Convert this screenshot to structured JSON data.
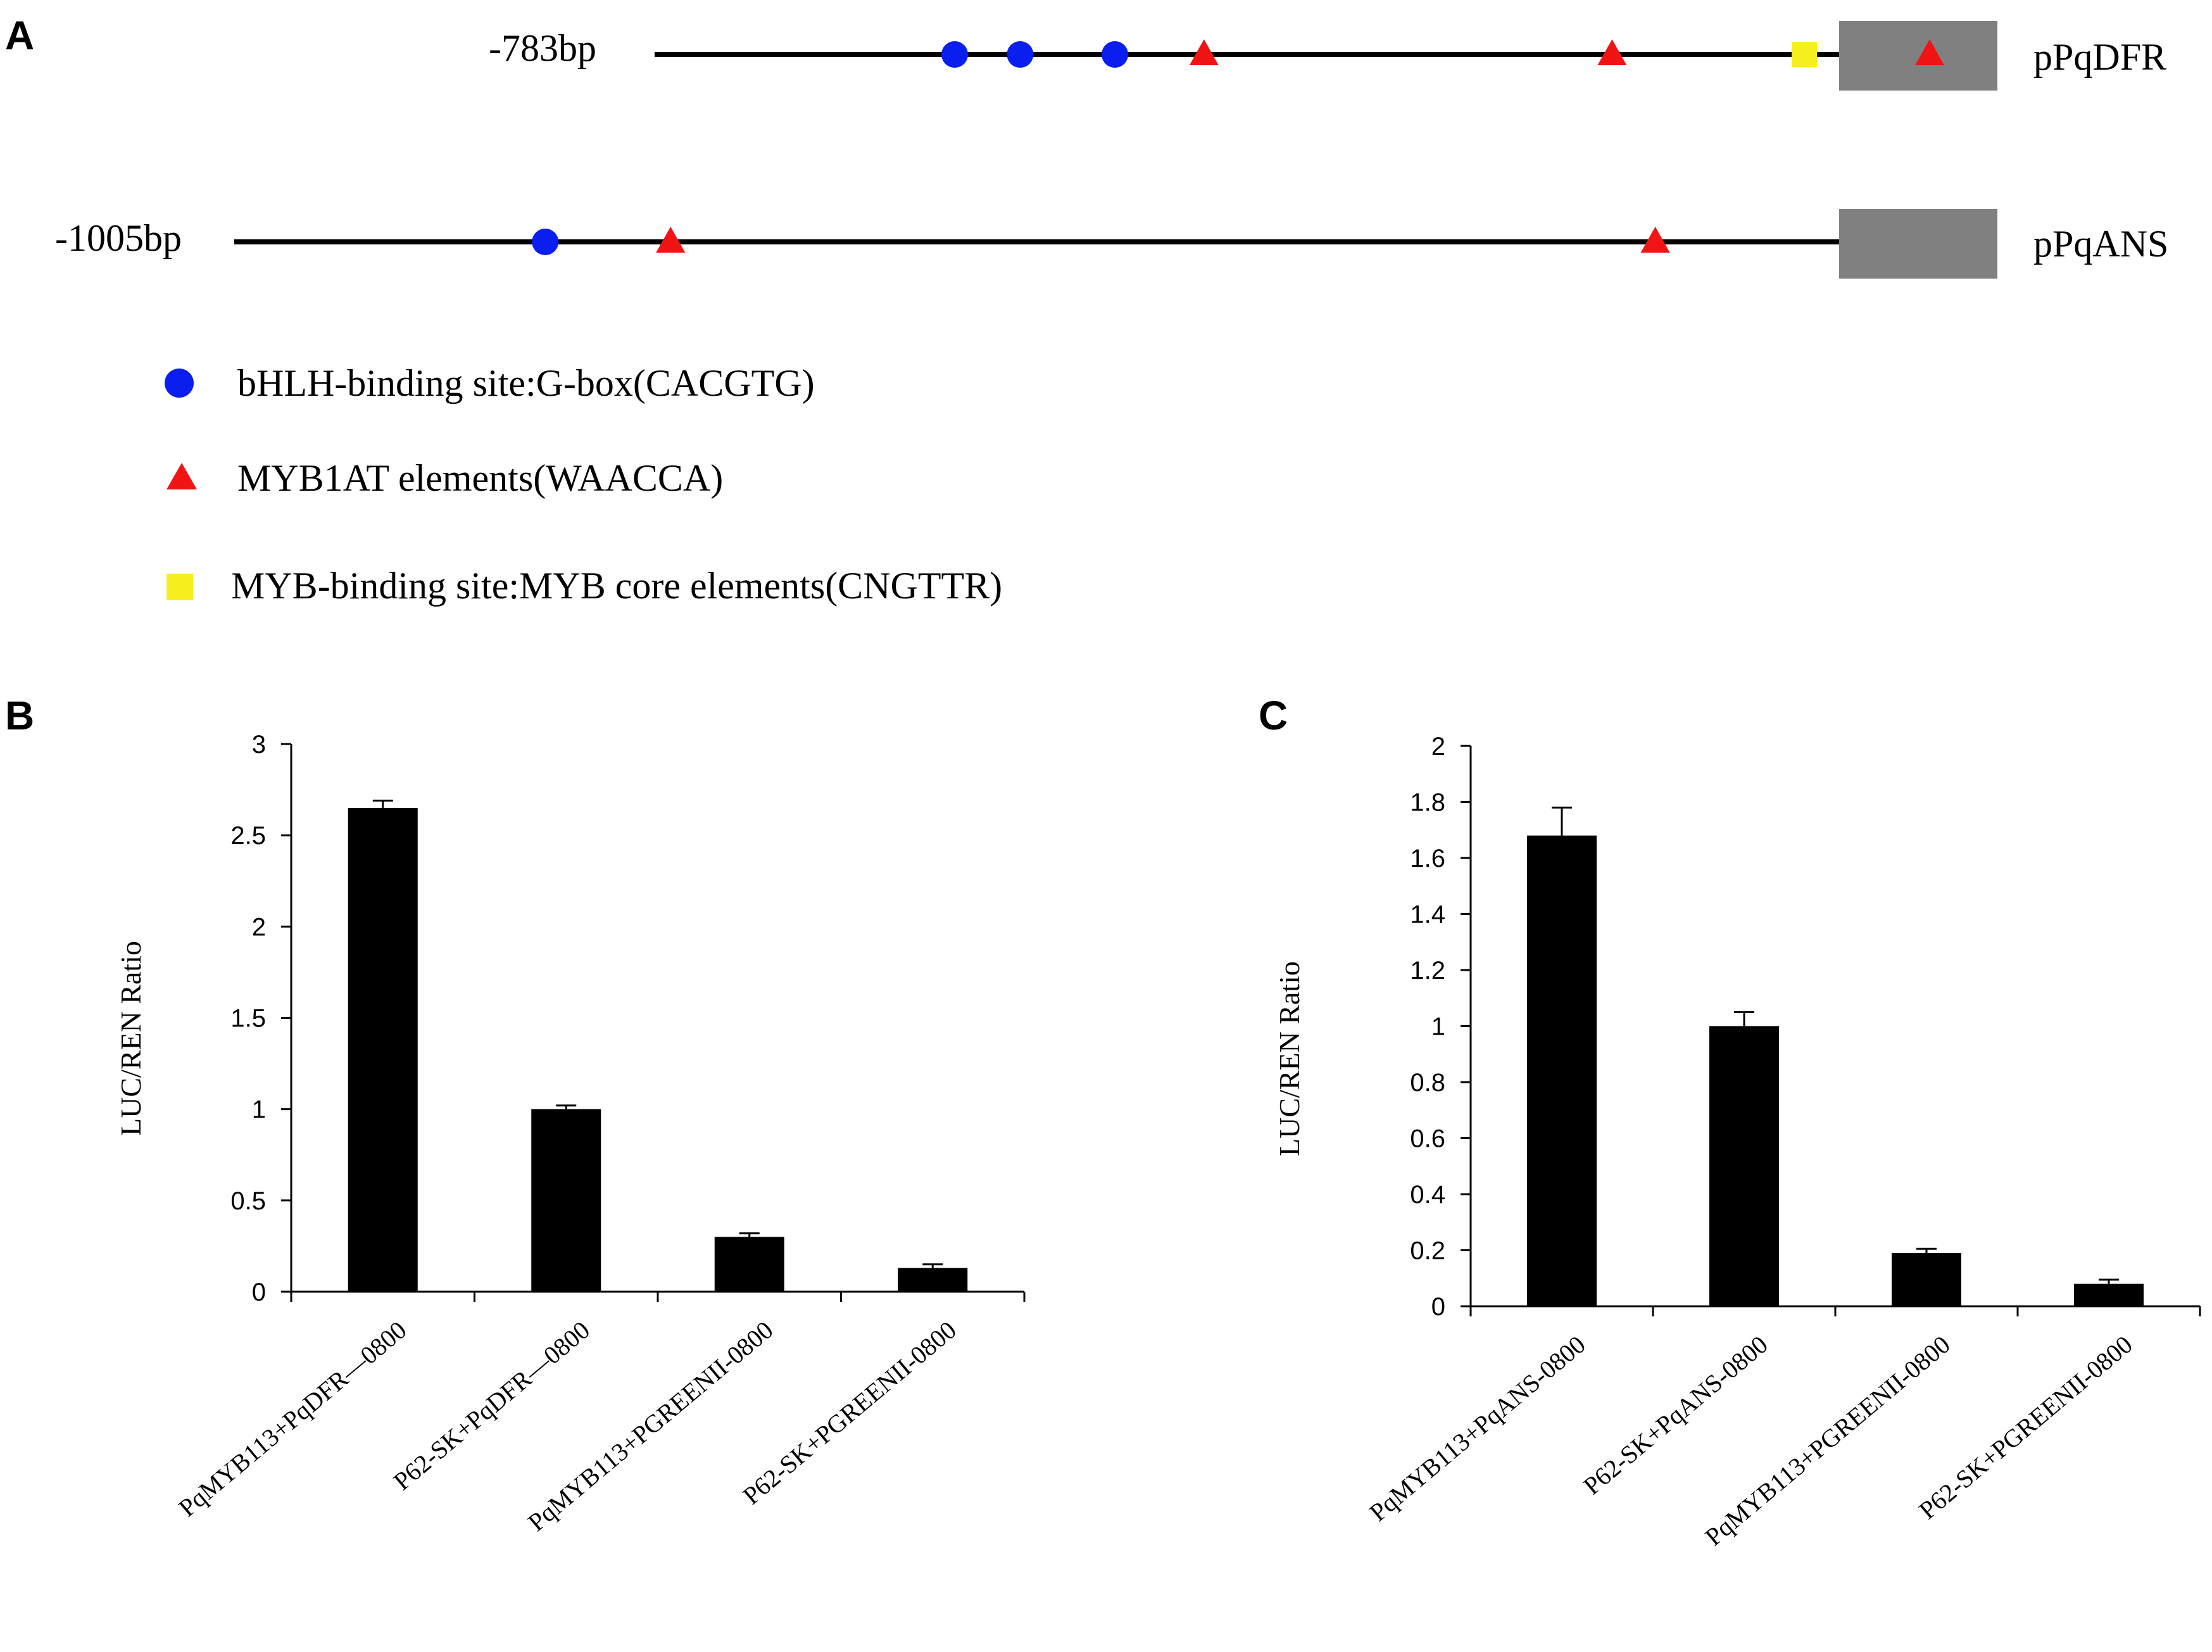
{
  "panels": {
    "A": "A",
    "B": "B",
    "C": "C"
  },
  "promoters": [
    {
      "left_label": "-783bp",
      "name": "pPqDFR",
      "length_bp": 783,
      "sites": [
        {
          "type": "bhlh",
          "pos_bp": 635
        },
        {
          "type": "bhlh",
          "pos_bp": 588
        },
        {
          "type": "bhlh",
          "pos_bp": 520
        },
        {
          "type": "myb1at",
          "pos_bp": 456
        },
        {
          "type": "myb1at",
          "pos_bp": 163
        },
        {
          "type": "myb_core",
          "pos_bp": 25
        },
        {
          "type": "myb1at",
          "pos_bp": -65
        }
      ]
    },
    {
      "left_label": "-1005bp",
      "name": "pPqANS",
      "length_bp": 1005,
      "sites": [
        {
          "type": "bhlh",
          "pos_bp": 929
        },
        {
          "type": "myb1at",
          "pos_bp": 839
        },
        {
          "type": "myb1at",
          "pos_bp": 132
        }
      ]
    }
  ],
  "legend": [
    {
      "type": "bhlh",
      "label": "bHLH-binding site:G-box(CACGTG)",
      "color": "#0a1ef0",
      "icon": "circle-icon"
    },
    {
      "type": "myb1at",
      "label": "MYB1AT elements(WAACCA)",
      "color": "#f01414",
      "icon": "triangle-icon"
    },
    {
      "type": "myb_core",
      "label": "MYB-binding site:MYB core elements(CNGTTR)",
      "color": "#f5f01e",
      "icon": "square-icon"
    }
  ],
  "colors": {
    "bar": "#000000",
    "gene_box": "#808080",
    "line": "#000000"
  },
  "chart_data": [
    {
      "panel": "B",
      "type": "bar",
      "categories": [
        "PqMYB113+PqDFR—0800",
        "P62-SK+PqDFR—0800",
        "PqMYB113+PGREENII-0800",
        "P62-SK+PGREENII-0800"
      ],
      "values": [
        2.65,
        1.0,
        0.3,
        0.13
      ],
      "errors": [
        0.04,
        0.02,
        0.02,
        0.02
      ],
      "ylabel": "LUC/REN Ratio",
      "ylim": [
        0,
        3
      ],
      "yticks": [
        0,
        0.5,
        1,
        1.5,
        2,
        2.5,
        3
      ],
      "ytick_labels": [
        "0",
        "0.5",
        "1",
        "1.5",
        "2",
        "2.5",
        "3"
      ]
    },
    {
      "panel": "C",
      "type": "bar",
      "categories": [
        "PqMYB113+PqANS-0800",
        "P62-SK+PqANS-0800",
        "PqMYB113+PGREENII-0800",
        "P62-SK+PGREENII-0800"
      ],
      "values": [
        1.68,
        1.0,
        0.19,
        0.08
      ],
      "errors": [
        0.1,
        0.05,
        0.015,
        0.015
      ],
      "ylabel": "LUC/REN Ratio",
      "ylim": [
        0,
        2
      ],
      "yticks": [
        0,
        0.2,
        0.4,
        0.6,
        0.8,
        1,
        1.2,
        1.4,
        1.6,
        1.8,
        2
      ],
      "ytick_labels": [
        "0",
        "0.2",
        "0.4",
        "0.6",
        "0.8",
        "1",
        "1.2",
        "1.4",
        "1.6",
        "1.8",
        "2"
      ]
    }
  ]
}
